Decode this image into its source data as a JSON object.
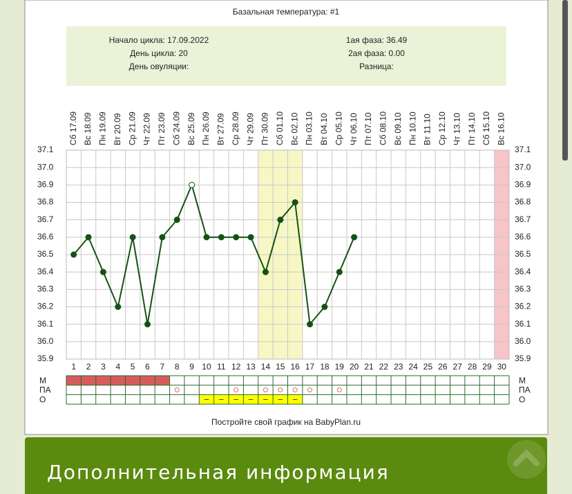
{
  "chart_data": {
    "type": "line",
    "title": "Базальная температура: #1",
    "info_left": [
      "Начало цикла: 17.09.2022",
      "День цикла: 20",
      "День овуляции:"
    ],
    "info_right": [
      "1ая фаза: 36.49",
      "2ая фаза: 0.00",
      "Разница:"
    ],
    "categories": [
      "Сб 17.09",
      "Вс 18.09",
      "Пн 19.09",
      "Вт 20.09",
      "Ср 21.09",
      "Чт 22.09",
      "Пт 23.09",
      "Сб 24.09",
      "Вс 25.09",
      "Пн 26.09",
      "Вт 27.09",
      "Ср 28.09",
      "Чт 29.09",
      "Пт 30.09",
      "Сб 01.10",
      "Вс 02.10",
      "Пн 03.10",
      "Вт 04.10",
      "Ср 05.10",
      "Чт 06.10",
      "Пт 07.10",
      "Сб 08.10",
      "Вс 09.10",
      "Пн 10.10",
      "Вт 11.10",
      "Ср 12.10",
      "Чт 13.10",
      "Пт 14.10",
      "Сб 15.10",
      "Вс 16.10"
    ],
    "day_numbers": [
      1,
      2,
      3,
      4,
      5,
      6,
      7,
      8,
      9,
      10,
      11,
      12,
      13,
      14,
      15,
      16,
      17,
      18,
      19,
      20,
      21,
      22,
      23,
      24,
      25,
      26,
      27,
      28,
      29,
      30
    ],
    "values": [
      36.5,
      36.6,
      36.4,
      36.2,
      36.6,
      36.1,
      36.6,
      36.7,
      36.9,
      36.6,
      36.6,
      36.6,
      36.6,
      36.4,
      36.7,
      36.8,
      36.1,
      36.2,
      36.4,
      36.6,
      null,
      null,
      null,
      null,
      null,
      null,
      null,
      null,
      null,
      null
    ],
    "color": "#145214",
    "open_points": [
      9
    ],
    "ylim": [
      35.9,
      37.1
    ],
    "yticks": [
      35.9,
      {
        "value": 36.0,
        "label": "36.0"
      },
      36.1,
      36.2,
      36.3,
      36.4,
      36.5,
      36.6,
      36.7,
      36.8,
      36.9,
      {
        "value": 37.0,
        "label": "37.0"
      },
      37.1
    ],
    "grid": true,
    "bands": [
      {
        "from": 14,
        "to": 16,
        "color": "#f7f7c6"
      },
      {
        "from": 30,
        "to": 30,
        "color": "#f7c4c7"
      }
    ],
    "rows": [
      {
        "label": "М",
        "color": "#d85a5e",
        "days": [
          1,
          2,
          3,
          4,
          5,
          6,
          7
        ]
      },
      {
        "label": "ПА",
        "color": "#e06666",
        "symbol": "circle",
        "days": [
          8,
          12,
          14,
          15,
          16,
          17,
          19
        ]
      },
      {
        "label": "О",
        "color": "#ffff00",
        "text": "–",
        "days": [
          10,
          11,
          12,
          13,
          14,
          15,
          16
        ]
      }
    ],
    "footer": "Постройте свой график на BabyPlan.ru"
  },
  "banner": "Дополнительная информация"
}
